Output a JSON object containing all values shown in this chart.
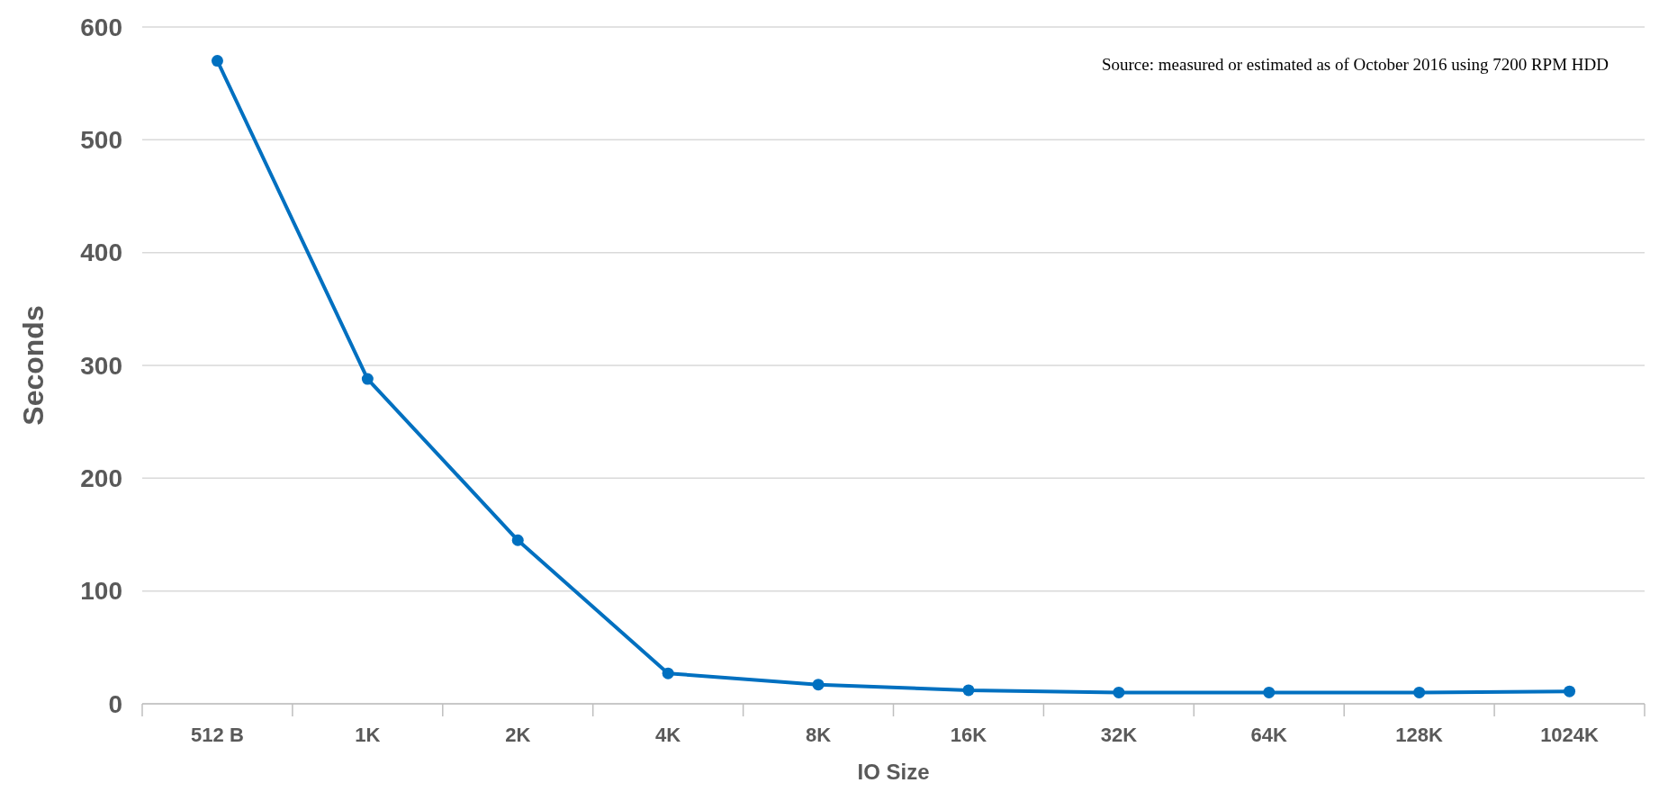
{
  "chart_data": {
    "type": "line",
    "xlabel": "IO Size",
    "ylabel": "Seconds",
    "categories": [
      "512 B",
      "1K",
      "2K",
      "4K",
      "8K",
      "16K",
      "32K",
      "64K",
      "128K",
      "1024K"
    ],
    "series": [
      {
        "color": "#0070c0",
        "values": [
          570,
          288,
          145,
          27,
          17,
          12,
          10,
          10,
          10,
          11
        ]
      }
    ],
    "ylim": [
      0,
      600
    ],
    "yticks": [
      0,
      100,
      200,
      300,
      400,
      500,
      600
    ],
    "grid": "y",
    "marker": "circle",
    "line_style": "solid",
    "annotations": [
      "Source: measured or estimated as of October 2016 using 7200 RPM HDD"
    ]
  }
}
